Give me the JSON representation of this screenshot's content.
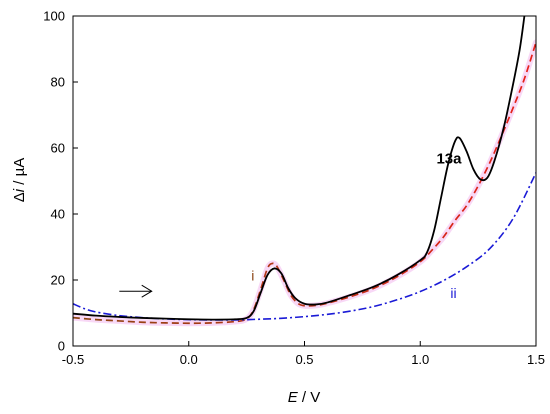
{
  "chart_data": {
    "type": "line",
    "xlabel": {
      "italic": "E",
      "rest": " / V"
    },
    "ylabel": {
      "pre": "Δ",
      "italic": "i",
      "rest": " / µA"
    },
    "xlim": [
      -0.5,
      1.5
    ],
    "ylim": [
      0,
      100
    ],
    "xticks": [
      -0.5,
      0.0,
      0.5,
      1.0,
      1.5
    ],
    "xtick_labels": [
      "-0.5",
      "0.0",
      "0.5",
      "1.0",
      "1.5"
    ],
    "yticks": [
      0,
      20,
      40,
      60,
      80,
      100
    ],
    "ytick_labels": [
      "0",
      "20",
      "40",
      "60",
      "80",
      "100"
    ],
    "grid": false,
    "series": [
      {
        "name": "i",
        "color_start": "#8b4513",
        "color_end": "#e8201a",
        "style": "dashed",
        "highlight": "#f2b8ef",
        "points": [
          [
            -0.5,
            8.6
          ],
          [
            -0.4,
            8.0
          ],
          [
            -0.3,
            7.6
          ],
          [
            -0.2,
            7.2
          ],
          [
            -0.1,
            7.0
          ],
          [
            0.0,
            6.9
          ],
          [
            0.1,
            7.0
          ],
          [
            0.2,
            7.4
          ],
          [
            0.25,
            8.2
          ],
          [
            0.28,
            11.0
          ],
          [
            0.31,
            17.0
          ],
          [
            0.34,
            23.5
          ],
          [
            0.36,
            25.0
          ],
          [
            0.38,
            24.2
          ],
          [
            0.41,
            20.0
          ],
          [
            0.44,
            15.5
          ],
          [
            0.47,
            13.0
          ],
          [
            0.5,
            12.2
          ],
          [
            0.55,
            12.3
          ],
          [
            0.6,
            13.0
          ],
          [
            0.7,
            15.0
          ],
          [
            0.8,
            17.5
          ],
          [
            0.9,
            21.0
          ],
          [
            1.0,
            25.5
          ],
          [
            1.05,
            29.0
          ],
          [
            1.1,
            33.0
          ],
          [
            1.15,
            38.0
          ],
          [
            1.2,
            42.5
          ],
          [
            1.25,
            48.5
          ],
          [
            1.3,
            55.5
          ],
          [
            1.35,
            63.5
          ],
          [
            1.4,
            72.0
          ],
          [
            1.45,
            81.0
          ],
          [
            1.5,
            92.0
          ]
        ]
      },
      {
        "name": "ii",
        "color": "#1a1ad6",
        "style": "dashdot",
        "points": [
          [
            -0.5,
            12.8
          ],
          [
            -0.45,
            11.3
          ],
          [
            -0.4,
            10.3
          ],
          [
            -0.3,
            9.2
          ],
          [
            -0.2,
            8.6
          ],
          [
            -0.1,
            8.2
          ],
          [
            0.0,
            8.0
          ],
          [
            0.1,
            7.9
          ],
          [
            0.2,
            7.9
          ],
          [
            0.3,
            8.1
          ],
          [
            0.4,
            8.4
          ],
          [
            0.5,
            8.9
          ],
          [
            0.6,
            9.6
          ],
          [
            0.7,
            10.6
          ],
          [
            0.8,
            12.0
          ],
          [
            0.9,
            14.0
          ],
          [
            1.0,
            16.5
          ],
          [
            1.1,
            19.8
          ],
          [
            1.2,
            24.0
          ],
          [
            1.3,
            29.5
          ],
          [
            1.4,
            38.5
          ],
          [
            1.5,
            52.5
          ]
        ]
      },
      {
        "name": "13a",
        "color": "#000000",
        "style": "solid",
        "points": [
          [
            -0.5,
            9.8
          ],
          [
            -0.4,
            9.2
          ],
          [
            -0.3,
            8.8
          ],
          [
            -0.2,
            8.5
          ],
          [
            -0.1,
            8.3
          ],
          [
            0.0,
            8.1
          ],
          [
            0.1,
            8.0
          ],
          [
            0.2,
            8.1
          ],
          [
            0.25,
            8.5
          ],
          [
            0.28,
            10.5
          ],
          [
            0.31,
            16.0
          ],
          [
            0.34,
            21.5
          ],
          [
            0.37,
            23.5
          ],
          [
            0.4,
            22.0
          ],
          [
            0.43,
            17.5
          ],
          [
            0.46,
            14.5
          ],
          [
            0.5,
            12.8
          ],
          [
            0.55,
            12.6
          ],
          [
            0.6,
            13.2
          ],
          [
            0.7,
            15.5
          ],
          [
            0.8,
            18.0
          ],
          [
            0.9,
            21.5
          ],
          [
            1.0,
            26.0
          ],
          [
            1.03,
            28.5
          ],
          [
            1.06,
            35.0
          ],
          [
            1.09,
            45.0
          ],
          [
            1.12,
            55.0
          ],
          [
            1.15,
            62.0
          ],
          [
            1.17,
            63.0
          ],
          [
            1.2,
            59.0
          ],
          [
            1.23,
            53.5
          ],
          [
            1.26,
            50.5
          ],
          [
            1.29,
            51.0
          ],
          [
            1.32,
            56.0
          ],
          [
            1.36,
            66.0
          ],
          [
            1.4,
            79.0
          ],
          [
            1.43,
            90.0
          ],
          [
            1.45,
            100.0
          ]
        ]
      }
    ],
    "annotations": [
      {
        "text": "13a",
        "x": 1.07,
        "y": 55.3,
        "color": "#000000",
        "bold": true
      },
      {
        "text": "i",
        "x": 0.27,
        "y": 19.8,
        "color": "#8b4513",
        "bold": false
      },
      {
        "text": "ii",
        "x": 1.13,
        "y": 14.6,
        "color": "#1a1ad6",
        "bold": false
      }
    ],
    "scan_arrow": {
      "x_start": -0.3,
      "x_end": -0.16,
      "y": 16.6
    }
  }
}
